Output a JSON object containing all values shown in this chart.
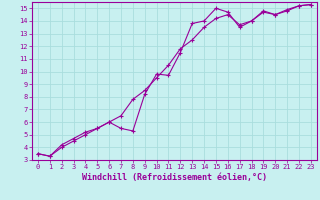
{
  "xlabel": "Windchill (Refroidissement éolien,°C)",
  "xlim": [
    -0.5,
    23.5
  ],
  "ylim": [
    3,
    15.5
  ],
  "xticks": [
    0,
    1,
    2,
    3,
    4,
    5,
    6,
    7,
    8,
    9,
    10,
    11,
    12,
    13,
    14,
    15,
    16,
    17,
    18,
    19,
    20,
    21,
    22,
    23
  ],
  "yticks": [
    3,
    4,
    5,
    6,
    7,
    8,
    9,
    10,
    11,
    12,
    13,
    14,
    15
  ],
  "bg_color": "#c8f0f0",
  "line_color": "#990099",
  "grid_color": "#aadddd",
  "line1_x": [
    0,
    1,
    2,
    3,
    4,
    5,
    6,
    7,
    8,
    9,
    10,
    11,
    12,
    13,
    14,
    15,
    16,
    17,
    18,
    19,
    20,
    21,
    22,
    23
  ],
  "line1_y": [
    3.5,
    3.3,
    4.0,
    4.5,
    5.0,
    5.5,
    6.0,
    5.5,
    5.3,
    8.2,
    9.8,
    9.7,
    11.5,
    13.8,
    14.0,
    15.0,
    14.7,
    13.5,
    14.0,
    14.8,
    14.5,
    14.8,
    15.2,
    15.3
  ],
  "line2_x": [
    0,
    1,
    2,
    3,
    4,
    5,
    6,
    7,
    8,
    9,
    10,
    11,
    12,
    13,
    14,
    15,
    16,
    17,
    18,
    19,
    20,
    21,
    22,
    23
  ],
  "line2_y": [
    3.5,
    3.3,
    4.2,
    4.7,
    5.2,
    5.5,
    6.0,
    6.5,
    7.8,
    8.5,
    9.5,
    10.5,
    11.8,
    12.5,
    13.5,
    14.2,
    14.5,
    13.7,
    14.0,
    14.7,
    14.5,
    14.9,
    15.2,
    15.3
  ],
  "tick_fontsize": 5.0,
  "label_fontsize": 6.0
}
